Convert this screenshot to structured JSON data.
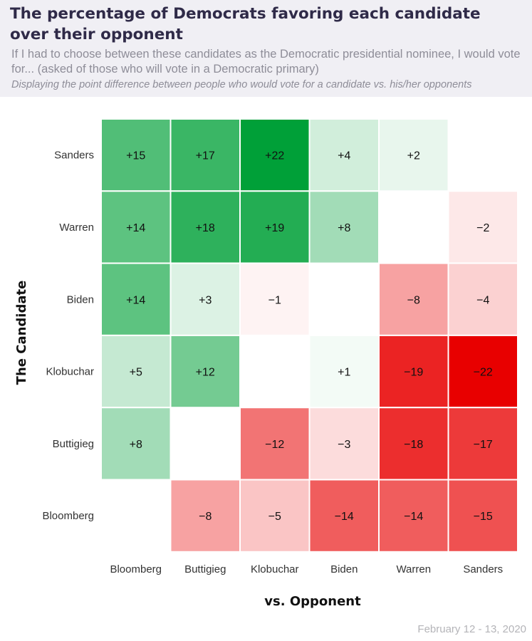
{
  "header": {
    "title": "The percentage of Democrats favoring each candidate over their opponent",
    "subtitle": "If I had to choose between these candidates as the Democratic presidential nominee, I would vote for... (asked of those who will vote in a Democratic primary)",
    "note": "Displaying the point difference between people who would vote for a candidate vs. his/her opponents"
  },
  "footer": {
    "date": "February 12 - 13, 2020"
  },
  "chart_data": {
    "type": "heatmap",
    "xlabel": "vs. Opponent",
    "ylabel": "The Candidate",
    "columns": [
      "Bloomberg",
      "Buttigieg",
      "Klobuchar",
      "Biden",
      "Warren",
      "Sanders"
    ],
    "rows": [
      "Sanders",
      "Warren",
      "Biden",
      "Klobuchar",
      "Buttigieg",
      "Bloomberg"
    ],
    "values": [
      [
        15,
        17,
        22,
        4,
        2,
        null
      ],
      [
        14,
        18,
        19,
        8,
        null,
        -2
      ],
      [
        14,
        3,
        -1,
        null,
        -8,
        -4
      ],
      [
        5,
        12,
        null,
        1,
        -19,
        -22
      ],
      [
        8,
        null,
        -12,
        -3,
        -18,
        -17
      ],
      [
        null,
        -8,
        -5,
        -14,
        -14,
        -15
      ]
    ],
    "color_scale": {
      "positive": "#00a038",
      "negative": "#e80000",
      "neutral": "#ffffff",
      "max_abs": 22
    }
  }
}
